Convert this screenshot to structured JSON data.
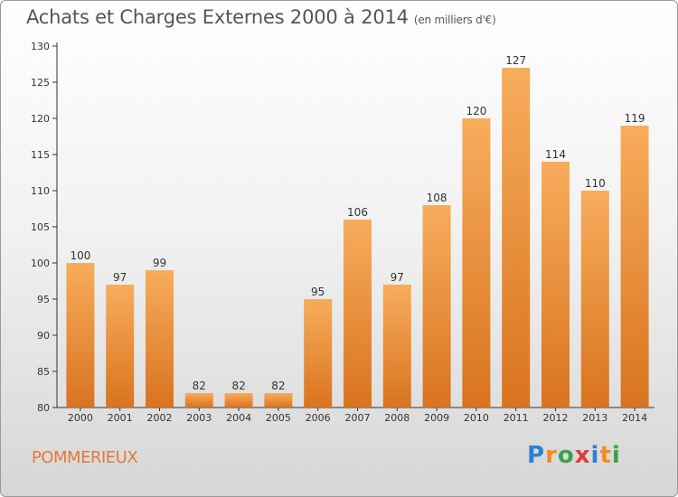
{
  "title": "Achats et Charges Externes 2000 à 2014",
  "unit": "(en milliers d'€)",
  "commune": "POMMERIEUX",
  "logo": {
    "text": "Proxiti",
    "colors": [
      "#2f80d1",
      "#f28c1f",
      "#3aa34a",
      "#e03a3a",
      "#2f80d1",
      "#f28c1f",
      "#3aa34a"
    ]
  },
  "colors": {
    "bar_top": "#f7ad5c",
    "bar_bottom": "#d9731f",
    "axis": "#333333",
    "grid": "#e0e0e0"
  },
  "chart_data": {
    "type": "bar",
    "categories": [
      "2000",
      "2001",
      "2002",
      "2003",
      "2004",
      "2005",
      "2006",
      "2007",
      "2008",
      "2009",
      "2010",
      "2011",
      "2012",
      "2013",
      "2014"
    ],
    "values": [
      100,
      97,
      99,
      82,
      82,
      82,
      95,
      106,
      97,
      108,
      120,
      127,
      114,
      110,
      119
    ],
    "ylim": [
      80,
      130
    ],
    "yticks": [
      80,
      85,
      90,
      95,
      100,
      105,
      110,
      115,
      120,
      125,
      130
    ],
    "title": "Achats et Charges Externes 2000 à 2014",
    "xlabel": "",
    "ylabel": "",
    "grid": false,
    "data_labels": true
  }
}
